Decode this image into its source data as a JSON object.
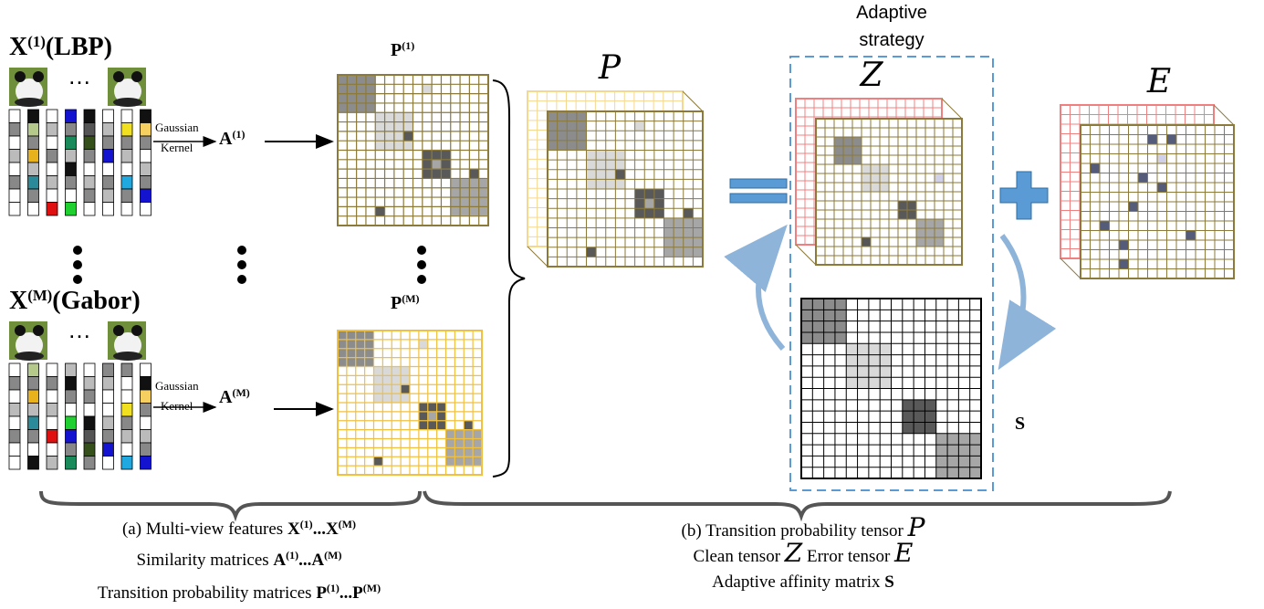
{
  "views": [
    {
      "label": {
        "base": "X",
        "sup": "(1)",
        "name": "(LBP)"
      },
      "kernel": [
        "Gaussian",
        "Kernel"
      ],
      "affinity": {
        "base": "A",
        "sup": "(1)"
      },
      "transition": {
        "base": "P",
        "sup": "(1)"
      }
    },
    {
      "label": {
        "base": "X",
        "sup": "(M)",
        "name": "(Gabor)"
      },
      "kernel": [
        "Gaussian",
        "Kernel"
      ],
      "affinity": {
        "base": "A",
        "sup": "(M)"
      },
      "transition": {
        "base": "P",
        "sup": "(M)"
      }
    }
  ],
  "ellipsis": "…",
  "tensors": {
    "P": "P",
    "Z": "Z",
    "E": "E"
  },
  "adaptive_strategy": [
    "Adaptive",
    "strategy"
  ],
  "affinity_matrix": "S",
  "captions": {
    "a": [
      [
        {
          "text": "(a) Multi-view features "
        },
        {
          "text": "X",
          "bold": true
        },
        {
          "text": "(1)",
          "sup": true
        },
        {
          "text": "...",
          "bold": true
        },
        {
          "text": "X",
          "bold": true
        },
        {
          "text": "(M)",
          "sup": true
        }
      ],
      [
        {
          "text": "Similarity matrices "
        },
        {
          "text": "A",
          "bold": true
        },
        {
          "text": "(1)",
          "sup": true
        },
        {
          "text": "...",
          "bold": true
        },
        {
          "text": "A",
          "bold": true
        },
        {
          "text": "(M)",
          "sup": true
        }
      ],
      [
        {
          "text": "Transition probability matrices "
        },
        {
          "text": "P",
          "bold": true
        },
        {
          "text": "(1)",
          "sup": true
        },
        {
          "text": "...",
          "bold": true
        },
        {
          "text": "P",
          "bold": true
        },
        {
          "text": "(M)",
          "sup": true
        }
      ]
    ],
    "b": [
      [
        {
          "text": "(b) Transition probability tensor "
        },
        {
          "text": "P",
          "script": true
        }
      ],
      [
        {
          "text": "Clean tensor "
        },
        {
          "text": "Z",
          "script": true
        },
        {
          "text": " Error tensor "
        },
        {
          "text": "E",
          "script": true
        }
      ],
      [
        {
          "text": "Adaptive affinity matrix "
        },
        {
          "text": "S",
          "bold": true
        }
      ]
    ]
  }
}
